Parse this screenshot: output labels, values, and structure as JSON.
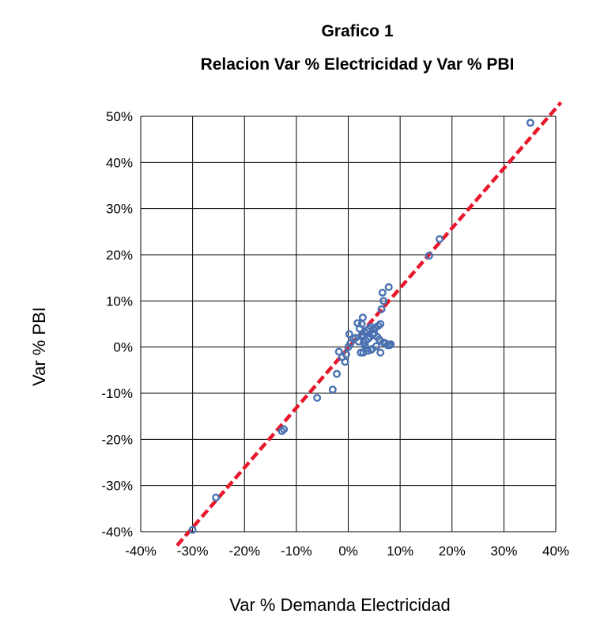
{
  "title_line1": "Grafico 1",
  "title_line2": "Relacion Var % Electricidad y Var % PBI",
  "colors": {
    "points": "#4a72b0",
    "trendline": "#e8172b",
    "grid": "#000000"
  },
  "chart_data": {
    "type": "scatter",
    "title": "Grafico 1 Relacion Var % Electricidad y Var % PBI",
    "xlabel": "Var % Demanda Electricidad",
    "ylabel": "Var % PBI",
    "xlim": [
      -40,
      40
    ],
    "ylim": [
      -40,
      50
    ],
    "x_ticks": [
      -40,
      -30,
      -20,
      -10,
      0,
      10,
      20,
      30,
      40
    ],
    "y_ticks": [
      -40,
      -30,
      -20,
      -10,
      0,
      10,
      20,
      30,
      40,
      50
    ],
    "x_tick_labels": [
      "-40%",
      "-30%",
      "-20%",
      "-10%",
      "0%",
      "10%",
      "20%",
      "30%",
      "40%"
    ],
    "y_tick_labels": [
      "-40%",
      "-30%",
      "-20%",
      "-10%",
      "0%",
      "10%",
      "20%",
      "30%",
      "40%",
      "50%"
    ],
    "grid": true,
    "trendline": {
      "style": "dashed",
      "points": [
        [
          -33,
          -43
        ],
        [
          41,
          53
        ]
      ]
    },
    "series": [
      {
        "x": [
          35.1,
          17.6,
          15.6,
          7.8,
          6.6,
          6.8,
          6.4,
          6.2,
          5.8,
          5.2,
          4.8,
          4.4,
          4.0,
          3.6,
          3.2,
          2.8,
          2.6,
          2.2,
          1.8,
          1.4,
          4.2,
          3.8,
          3.4,
          3.0,
          2.6,
          5.0,
          5.6,
          6.0,
          6.8,
          7.2,
          7.6,
          8.0,
          8.2,
          4.6,
          3.8,
          2.9,
          2.4,
          3.4,
          4.4,
          5.4,
          6.2,
          0.4,
          0.2,
          -0.4,
          -0.6,
          -1.2,
          -1.8,
          -2.2,
          -3.0,
          -6.0,
          -12.4,
          -12.8,
          -25.5,
          -30.0,
          0.0,
          1.0,
          3.0,
          4.8,
          3.2,
          2.0
        ],
        "y": [
          48.6,
          23.4,
          19.8,
          13.0,
          11.8,
          10.0,
          8.2,
          5.0,
          4.6,
          4.2,
          3.8,
          4.4,
          4.0,
          3.6,
          3.2,
          6.4,
          5.0,
          4.0,
          5.2,
          2.0,
          2.2,
          1.8,
          1.4,
          1.0,
          2.6,
          3.0,
          2.2,
          1.6,
          1.0,
          0.8,
          0.4,
          0.4,
          0.6,
          -0.4,
          -0.8,
          -1.2,
          -1.2,
          -0.2,
          -0.6,
          0.2,
          -1.2,
          0.8,
          2.8,
          -1.6,
          -3.2,
          -2.2,
          -1.0,
          -5.8,
          -9.2,
          -11.0,
          -17.8,
          -18.2,
          -32.6,
          -39.6,
          0.0,
          1.8,
          2.4,
          2.8,
          0.4,
          1.2
        ]
      }
    ]
  }
}
